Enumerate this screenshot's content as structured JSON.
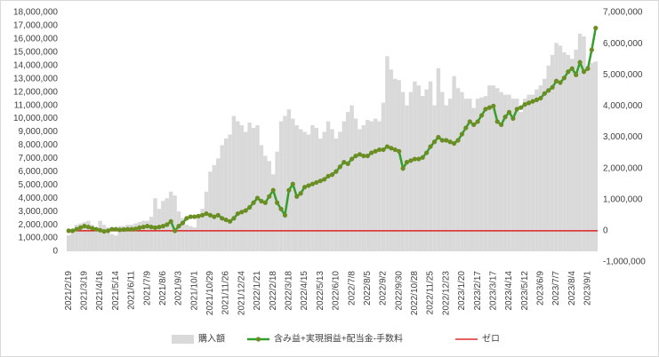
{
  "chart_data": {
    "type": "bar_line",
    "categories": [
      "2021/2/19",
      null,
      null,
      null,
      "2021/3/19",
      null,
      null,
      null,
      "2021/4/16",
      null,
      null,
      null,
      "2021/5/14",
      null,
      null,
      null,
      "2021/6/11",
      null,
      null,
      null,
      "2021/7/9",
      null,
      null,
      null,
      "2021/8/6",
      null,
      null,
      null,
      "2021/9/3",
      null,
      null,
      null,
      "2021/10/1",
      null,
      null,
      null,
      "2021/10/29",
      null,
      null,
      null,
      "2021/11/26",
      null,
      null,
      null,
      "2021/12/24",
      null,
      null,
      null,
      "2022/1/21",
      null,
      null,
      null,
      "2022/2/18",
      null,
      null,
      null,
      "2022/3/18",
      null,
      null,
      null,
      "2022/4/15",
      null,
      null,
      null,
      "2022/5/13",
      null,
      null,
      null,
      "2022/6/10",
      null,
      null,
      null,
      "2022/7/8",
      null,
      null,
      null,
      "2022/8/5",
      null,
      null,
      null,
      "2022/9/2",
      null,
      null,
      null,
      "2022/9/30",
      null,
      null,
      null,
      "2022/10/28",
      null,
      null,
      null,
      "2022/11/25",
      null,
      null,
      null,
      "2022/12/23",
      null,
      null,
      null,
      "2023/1/20",
      null,
      null,
      null,
      "2023/2/17",
      null,
      null,
      null,
      "2023/3/17",
      null,
      null,
      null,
      "2023/4/14",
      null,
      null,
      null,
      "2023/5/12",
      null,
      null,
      null,
      "2023/6/9",
      null,
      null,
      null,
      "2023/7/7",
      null,
      null,
      null,
      "2023/8/4",
      null,
      null,
      null,
      "2023/9/1",
      null,
      null
    ],
    "series": [
      {
        "name": "購入額",
        "type": "bar",
        "color": "#d9d9d9",
        "axis": "y",
        "values": [
          1200000,
          1500000,
          2000000,
          2100000,
          2200000,
          2300000,
          2000000,
          1600000,
          2300000,
          2000000,
          1800000,
          1300000,
          1200000,
          1900000,
          1900000,
          2000000,
          2000000,
          2100000,
          2200000,
          2300000,
          2300000,
          2600000,
          4000000,
          3200000,
          3800000,
          4000000,
          4500000,
          4200000,
          3000000,
          2500000,
          2000000,
          1900000,
          1800000,
          2500000,
          3200000,
          4500000,
          6000000,
          6500000,
          7000000,
          8000000,
          8500000,
          8800000,
          10200000,
          9800000,
          9500000,
          9000000,
          9700000,
          9300000,
          9500000,
          8000000,
          7200000,
          6800000,
          5800000,
          7500000,
          9800000,
          10200000,
          10700000,
          10000000,
          9500000,
          9200000,
          9000000,
          8800000,
          9500000,
          9300000,
          8500000,
          9000000,
          9800000,
          9200000,
          8500000,
          9000000,
          9800000,
          10500000,
          11000000,
          10000000,
          9200000,
          9500000,
          9900000,
          9800000,
          10000000,
          9800000,
          11200000,
          14700000,
          13700000,
          13000000,
          12900000,
          12000000,
          11000000,
          12000000,
          12800000,
          12500000,
          11700000,
          12200000,
          12800000,
          11000000,
          13800000,
          12000000,
          11000000,
          11500000,
          13200000,
          12300000,
          12000000,
          11500000,
          11500000,
          10800000,
          11500000,
          11600000,
          11700000,
          12500000,
          12500000,
          12300000,
          12000000,
          11800000,
          11800000,
          11500000,
          11500000,
          10500000,
          11500000,
          11800000,
          11800000,
          12200000,
          12500000,
          13000000,
          14000000,
          14800000,
          15700000,
          15500000,
          15000000,
          14800000,
          14500000,
          15200000,
          16400000,
          16200000,
          14000000,
          14200000,
          14300000
        ]
      },
      {
        "name": "含み益+実現損益+配当金-手数料",
        "type": "line",
        "color": "#33a02c",
        "marker_color": "#6b8e23",
        "axis": "y2",
        "values": [
          0,
          0,
          50000,
          100000,
          150000,
          120000,
          80000,
          50000,
          20000,
          -20000,
          0,
          50000,
          50000,
          30000,
          40000,
          50000,
          50000,
          60000,
          100000,
          120000,
          150000,
          120000,
          100000,
          120000,
          150000,
          200000,
          300000,
          0,
          150000,
          250000,
          400000,
          450000,
          450000,
          470000,
          500000,
          550000,
          500000,
          450000,
          500000,
          400000,
          350000,
          300000,
          400000,
          550000,
          600000,
          650000,
          750000,
          900000,
          1050000,
          950000,
          900000,
          1100000,
          1300000,
          900000,
          700000,
          500000,
          1300000,
          1500000,
          1100000,
          1200000,
          1400000,
          1450000,
          1500000,
          1550000,
          1600000,
          1650000,
          1750000,
          1800000,
          1900000,
          2050000,
          2200000,
          2150000,
          2300000,
          2400000,
          2450000,
          2400000,
          2400000,
          2500000,
          2550000,
          2600000,
          2600000,
          2700000,
          2650000,
          2600000,
          2550000,
          2000000,
          2200000,
          2250000,
          2300000,
          2300000,
          2350000,
          2500000,
          2700000,
          2850000,
          3000000,
          2900000,
          2900000,
          2850000,
          2800000,
          2900000,
          3100000,
          3300000,
          3500000,
          3400000,
          3500000,
          3700000,
          3900000,
          3950000,
          4000000,
          3500000,
          3400000,
          3650000,
          3800000,
          3600000,
          3900000,
          3950000,
          4050000,
          4100000,
          4150000,
          4200000,
          4250000,
          4400000,
          4500000,
          4600000,
          4800000,
          4750000,
          4900000,
          5100000,
          5200000,
          5000000,
          5400000,
          5100000,
          5200000,
          5800000,
          6500000
        ]
      },
      {
        "name": "ゼロ",
        "type": "hline",
        "color": "#e00000",
        "axis": "y2",
        "value": 0
      }
    ],
    "ylim": [
      0,
      18000000
    ],
    "yticks": [
      0,
      {
        "value": 1000000,
        "label": "1,000,000"
      },
      {
        "value": 2000000,
        "label": "2,000,000"
      },
      {
        "value": 3000000,
        "label": "3,000,000"
      },
      {
        "value": 4000000,
        "label": "4,000,000"
      },
      {
        "value": 5000000,
        "label": "5,000,000"
      },
      {
        "value": 6000000,
        "label": "6,000,000"
      },
      {
        "value": 7000000,
        "label": "7,000,000"
      },
      {
        "value": 8000000,
        "label": "8,000,000"
      },
      {
        "value": 9000000,
        "label": "9,000,000"
      },
      {
        "value": 10000000,
        "label": "10,000,000"
      },
      {
        "value": 11000000,
        "label": "11,000,000"
      },
      {
        "value": 12000000,
        "label": "12,000,000"
      },
      {
        "value": 13000000,
        "label": "13,000,000"
      },
      {
        "value": 14000000,
        "label": "14,000,000"
      },
      {
        "value": 15000000,
        "label": "15,000,000"
      },
      {
        "value": 16000000,
        "label": "16,000,000"
      },
      {
        "value": 17000000,
        "label": "17,000,000"
      },
      {
        "value": 18000000,
        "label": "18,000,000"
      }
    ],
    "y2lim": [
      -1000000,
      7000000
    ],
    "y2ticks": [
      {
        "value": -1000000,
        "label": "-1,000,000"
      },
      0,
      {
        "value": 1000000,
        "label": "1,000,000"
      },
      {
        "value": 2000000,
        "label": "2,000,000"
      },
      {
        "value": 3000000,
        "label": "3,000,000"
      },
      {
        "value": 4000000,
        "label": "4,000,000"
      },
      {
        "value": 5000000,
        "label": "5,000,000"
      },
      {
        "value": 6000000,
        "label": "6,000,000"
      },
      {
        "value": 7000000,
        "label": "7,000,000"
      }
    ],
    "legend": "bottom"
  }
}
